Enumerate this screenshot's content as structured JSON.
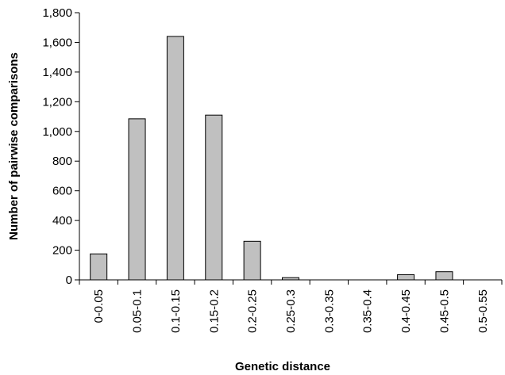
{
  "chart_data": {
    "type": "bar",
    "categories": [
      "0-0.05",
      "0.05-0.1",
      "0.1-0.15",
      "0.15-0.2",
      "0.2-0.25",
      "0.25-0.3",
      "0.3-0.35",
      "0.35-0.4",
      "0.4-0.45",
      "0.45-0.5",
      "0.5-0.55"
    ],
    "values": [
      175,
      1085,
      1640,
      1110,
      260,
      15,
      0,
      0,
      35,
      55,
      0
    ],
    "xlabel": "Genetic distance",
    "ylabel": "Number of pairwise comparisons",
    "ylim": [
      0,
      1800
    ],
    "yticks": [
      0,
      200,
      400,
      600,
      800,
      1000,
      1200,
      1400,
      1600,
      1800
    ],
    "ytick_labels": [
      "0",
      "200",
      "400",
      "600",
      "800",
      "1,000",
      "1,200",
      "1,400",
      "1,600",
      "1,800"
    ],
    "grid": false,
    "bar_color": "#c0c0c0"
  }
}
